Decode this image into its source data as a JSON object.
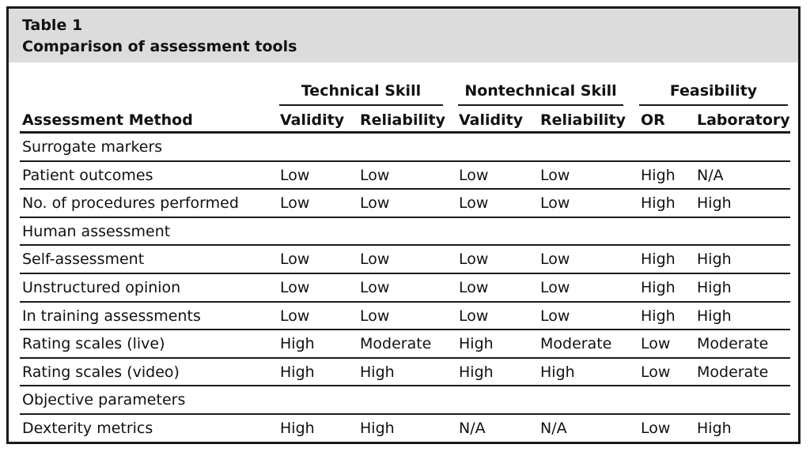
{
  "caption": {
    "label": "Table 1",
    "title": "Comparison of assessment tools"
  },
  "groups": [
    "Technical Skill",
    "Nontechnical Skill",
    "Feasibility"
  ],
  "columns": [
    "Assessment Method",
    "Validity",
    "Reliability",
    "Validity",
    "Reliability",
    "OR",
    "Laboratory"
  ],
  "rows": [
    {
      "type": "section",
      "label": "Surrogate markers"
    },
    {
      "type": "data",
      "cells": [
        "Patient outcomes",
        "Low",
        "Low",
        "Low",
        "Low",
        "High",
        "N/A"
      ]
    },
    {
      "type": "data",
      "cells": [
        "No. of procedures performed",
        "Low",
        "Low",
        "Low",
        "Low",
        "High",
        "High"
      ]
    },
    {
      "type": "section",
      "label": "Human assessment"
    },
    {
      "type": "data",
      "cells": [
        "Self-assessment",
        "Low",
        "Low",
        "Low",
        "Low",
        "High",
        "High"
      ]
    },
    {
      "type": "data",
      "cells": [
        "Unstructured opinion",
        "Low",
        "Low",
        "Low",
        "Low",
        "High",
        "High"
      ]
    },
    {
      "type": "data",
      "cells": [
        "In training assessments",
        "Low",
        "Low",
        "Low",
        "Low",
        "High",
        "High"
      ]
    },
    {
      "type": "data",
      "cells": [
        "Rating scales (live)",
        "High",
        "Moderate",
        "High",
        "Moderate",
        "Low",
        "Moderate"
      ]
    },
    {
      "type": "data",
      "cells": [
        "Rating scales (video)",
        "High",
        "High",
        "High",
        "High",
        "Low",
        "Moderate"
      ]
    },
    {
      "type": "section",
      "label": "Objective parameters"
    },
    {
      "type": "data",
      "cells": [
        "Dexterity metrics",
        "High",
        "High",
        "N/A",
        "N/A",
        "Low",
        "High"
      ]
    }
  ]
}
